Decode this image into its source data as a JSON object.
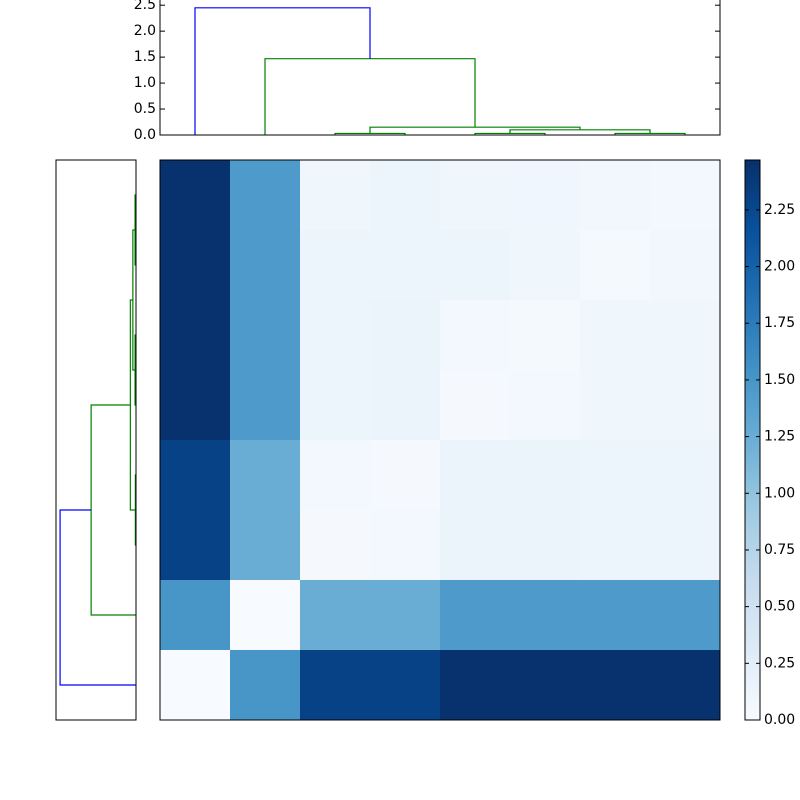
{
  "chart_data": [
    {
      "type": "dendrogram",
      "orientation": "top",
      "xlim": [
        0,
        80
      ],
      "ylim": [
        0,
        2.6
      ],
      "yticks": [
        {
          "value": 0,
          "label": "0.0"
        },
        {
          "value": 0.5,
          "label": "0.5"
        },
        {
          "value": 1,
          "label": "1.0"
        },
        {
          "value": 1.5,
          "label": "1.5"
        },
        {
          "value": 2,
          "label": "2.0"
        },
        {
          "value": 2.5,
          "label": "2.5"
        }
      ],
      "links": [
        {
          "xs": [
            25,
            25,
            35,
            35
          ],
          "ys": [
            0,
            0.03,
            0.03,
            0
          ],
          "color": "#008000"
        },
        {
          "xs": [
            45,
            45,
            55,
            55
          ],
          "ys": [
            0,
            0.03,
            0.03,
            0
          ],
          "color": "#008000"
        },
        {
          "xs": [
            65,
            65,
            75,
            75
          ],
          "ys": [
            0,
            0.03,
            0.03,
            0
          ],
          "color": "#008000"
        },
        {
          "xs": [
            50,
            50,
            70,
            70
          ],
          "ys": [
            0.03,
            0.1,
            0.1,
            0.03
          ],
          "color": "#008000"
        },
        {
          "xs": [
            30,
            30,
            60,
            60
          ],
          "ys": [
            0.03,
            0.15,
            0.15,
            0.1
          ],
          "color": "#008000"
        },
        {
          "xs": [
            15,
            15,
            45,
            45
          ],
          "ys": [
            0,
            1.47,
            1.47,
            0.15
          ],
          "color": "#008000"
        },
        {
          "xs": [
            5,
            5,
            30,
            30
          ],
          "ys": [
            0,
            2.45,
            2.45,
            1.47
          ],
          "color": "#0000ff"
        }
      ]
    },
    {
      "type": "dendrogram",
      "orientation": "left",
      "xlim": [
        0,
        80
      ],
      "ylim": [
        0,
        2.55
      ],
      "links": [
        {
          "xs": [
            25,
            25,
            35,
            35
          ],
          "ys": [
            0,
            0.02,
            0.02,
            0
          ],
          "color": "#008000"
        },
        {
          "xs": [
            65,
            65,
            75,
            75
          ],
          "ys": [
            0,
            0.03,
            0.03,
            0
          ],
          "color": "#008000"
        },
        {
          "xs": [
            45,
            45,
            55,
            55
          ],
          "ys": [
            0,
            0.03,
            0.03,
            0
          ],
          "color": "#008000"
        },
        {
          "xs": [
            50,
            50,
            70,
            70
          ],
          "ys": [
            0.03,
            0.1,
            0.1,
            0.03
          ],
          "color": "#008000"
        },
        {
          "xs": [
            30,
            30,
            60,
            60
          ],
          "ys": [
            0.02,
            0.18,
            0.18,
            0.1
          ],
          "color": "#008000"
        },
        {
          "xs": [
            15,
            15,
            45,
            45
          ],
          "ys": [
            0,
            1.43,
            1.43,
            0.18
          ],
          "color": "#008000"
        },
        {
          "xs": [
            5,
            5,
            30,
            30
          ],
          "ys": [
            0,
            2.42,
            2.42,
            1.43
          ],
          "color": "#0000ff"
        }
      ]
    },
    {
      "type": "heatmap",
      "colormap": "Blues",
      "vlim": [
        0,
        2.47
      ],
      "values": [
        [
          2.45,
          1.45,
          0.1,
          0.12,
          0.1,
          0.09,
          0.07,
          0.05
        ],
        [
          2.45,
          1.45,
          0.12,
          0.13,
          0.12,
          0.1,
          0.04,
          0.07
        ],
        [
          2.45,
          1.45,
          0.12,
          0.14,
          0.06,
          0.04,
          0.1,
          0.1
        ],
        [
          2.45,
          1.45,
          0.12,
          0.14,
          0.03,
          0.06,
          0.1,
          0.1
        ],
        [
          2.3,
          1.25,
          0.06,
          0.03,
          0.14,
          0.14,
          0.13,
          0.12
        ],
        [
          2.3,
          1.25,
          0.03,
          0.06,
          0.14,
          0.14,
          0.13,
          0.12
        ],
        [
          1.5,
          0,
          1.25,
          1.25,
          1.45,
          1.45,
          1.45,
          1.45
        ],
        [
          0,
          1.5,
          2.3,
          2.3,
          2.45,
          2.45,
          2.45,
          2.45
        ]
      ],
      "colorbar_ticks": [
        {
          "value": 0,
          "label": "0.00"
        },
        {
          "value": 0.25,
          "label": "0.25"
        },
        {
          "value": 0.5,
          "label": "0.50"
        },
        {
          "value": 0.75,
          "label": "0.75"
        },
        {
          "value": 1,
          "label": "1.00"
        },
        {
          "value": 1.25,
          "label": "1.25"
        },
        {
          "value": 1.5,
          "label": "1.50"
        },
        {
          "value": 1.75,
          "label": "1.75"
        },
        {
          "value": 2,
          "label": "2.00"
        },
        {
          "value": 2.25,
          "label": "2.25"
        }
      ]
    }
  ]
}
